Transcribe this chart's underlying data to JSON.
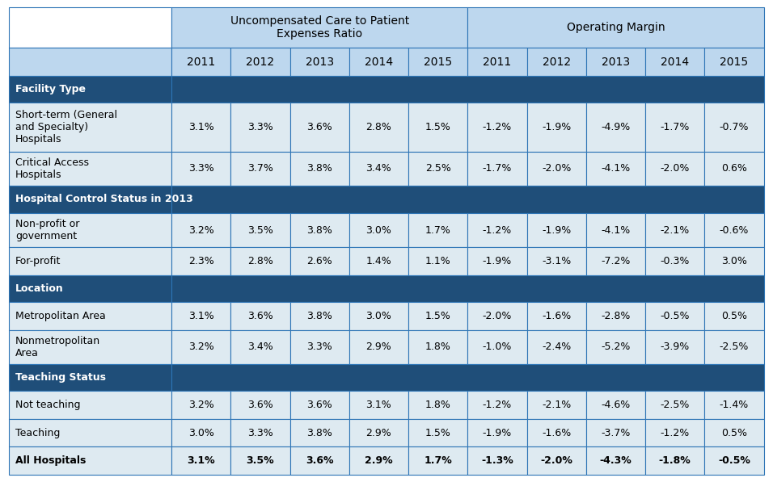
{
  "col_group1": "Uncompensated Care to Patient\nExpenses Ratio",
  "col_group2": "Operating Margin",
  "years": [
    "2011",
    "2012",
    "2013",
    "2014",
    "2015"
  ],
  "section_bg": "#1F4E79",
  "section_text": "#FFFFFF",
  "subheader_bg": "#BDD7EE",
  "data_bg": "#DEEAF1",
  "border_color": "#2E75B6",
  "rows": [
    {
      "type": "section",
      "label": "Facility Type",
      "uc": [
        "",
        "",
        "",
        "",
        ""
      ],
      "om": [
        "",
        "",
        "",
        "",
        ""
      ]
    },
    {
      "type": "data",
      "label": "Short-term (General\nand Specialty)\nHospitals",
      "uc": [
        "3.1%",
        "3.3%",
        "3.6%",
        "2.8%",
        "1.5%"
      ],
      "om": [
        "-1.2%",
        "-1.9%",
        "-4.9%",
        "-1.7%",
        "-0.7%"
      ]
    },
    {
      "type": "data",
      "label": "Critical Access\nHospitals",
      "uc": [
        "3.3%",
        "3.7%",
        "3.8%",
        "3.4%",
        "2.5%"
      ],
      "om": [
        "-1.7%",
        "-2.0%",
        "-4.1%",
        "-2.0%",
        "0.6%"
      ]
    },
    {
      "type": "section",
      "label": "Hospital Control Status in 2013",
      "uc": [
        "",
        "",
        "",
        "",
        ""
      ],
      "om": [
        "",
        "",
        "",
        "",
        ""
      ]
    },
    {
      "type": "data",
      "label": "Non-profit or\ngovernment",
      "uc": [
        "3.2%",
        "3.5%",
        "3.8%",
        "3.0%",
        "1.7%"
      ],
      "om": [
        "-1.2%",
        "-1.9%",
        "-4.1%",
        "-2.1%",
        "-0.6%"
      ]
    },
    {
      "type": "data",
      "label": "For-profit",
      "uc": [
        "2.3%",
        "2.8%",
        "2.6%",
        "1.4%",
        "1.1%"
      ],
      "om": [
        "-1.9%",
        "-3.1%",
        "-7.2%",
        "-0.3%",
        "3.0%"
      ]
    },
    {
      "type": "section",
      "label": "Location",
      "uc": [
        "",
        "",
        "",
        "",
        ""
      ],
      "om": [
        "",
        "",
        "",
        "",
        ""
      ]
    },
    {
      "type": "data",
      "label": "Metropolitan Area",
      "uc": [
        "3.1%",
        "3.6%",
        "3.8%",
        "3.0%",
        "1.5%"
      ],
      "om": [
        "-2.0%",
        "-1.6%",
        "-2.8%",
        "-0.5%",
        "0.5%"
      ]
    },
    {
      "type": "data",
      "label": "Nonmetropolitan\nArea",
      "uc": [
        "3.2%",
        "3.4%",
        "3.3%",
        "2.9%",
        "1.8%"
      ],
      "om": [
        "-1.0%",
        "-2.4%",
        "-5.2%",
        "-3.9%",
        "-2.5%"
      ]
    },
    {
      "type": "section",
      "label": "Teaching Status",
      "uc": [
        "",
        "",
        "",
        "",
        ""
      ],
      "om": [
        "",
        "",
        "",
        "",
        ""
      ]
    },
    {
      "type": "data",
      "label": "Not teaching",
      "uc": [
        "3.2%",
        "3.6%",
        "3.6%",
        "3.1%",
        "1.8%"
      ],
      "om": [
        "-1.2%",
        "-2.1%",
        "-4.6%",
        "-2.5%",
        "-1.4%"
      ]
    },
    {
      "type": "data",
      "label": "Teaching",
      "uc": [
        "3.0%",
        "3.3%",
        "3.8%",
        "2.9%",
        "1.5%"
      ],
      "om": [
        "-1.9%",
        "-1.6%",
        "-3.7%",
        "-1.2%",
        "0.5%"
      ]
    },
    {
      "type": "bold_data",
      "label": "All Hospitals",
      "uc": [
        "3.1%",
        "3.5%",
        "3.6%",
        "2.9%",
        "1.7%"
      ],
      "om": [
        "-1.3%",
        "-2.0%",
        "-4.3%",
        "-1.8%",
        "-0.5%"
      ]
    }
  ]
}
